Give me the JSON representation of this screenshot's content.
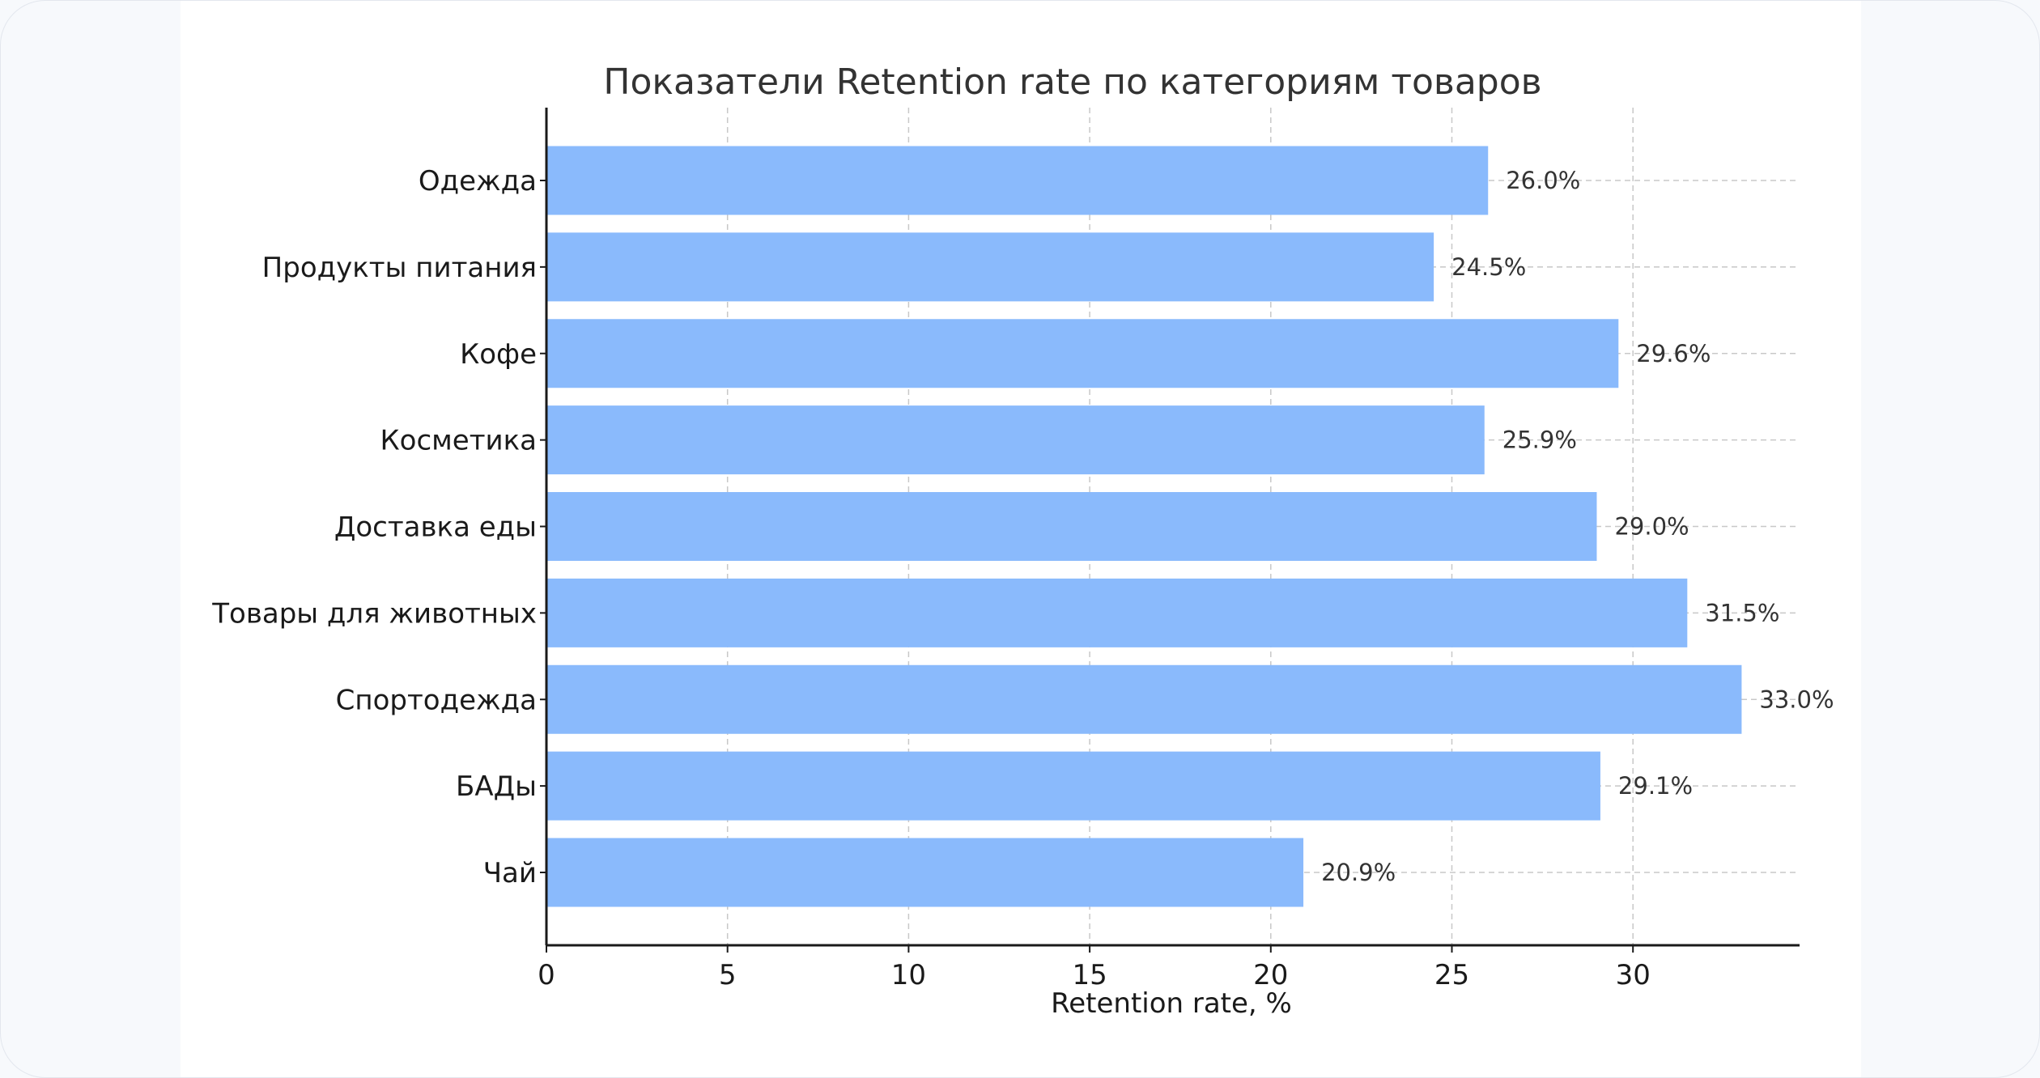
{
  "chart_data": {
    "type": "bar",
    "orientation": "horizontal",
    "title": "Показатели Retention rate по категориям товаров",
    "xlabel": "Retention rate, %",
    "ylabel": "",
    "categories": [
      "Одежда",
      "Продукты питания",
      "Кофе",
      "Косметика",
      "Доставка еды",
      "Товары для животных",
      "Спортодежда",
      "БАДы",
      "Чай"
    ],
    "values": [
      26.0,
      24.5,
      29.6,
      25.9,
      29.0,
      31.5,
      33.0,
      29.1,
      20.9
    ],
    "value_labels": [
      "26.0%",
      "24.5%",
      "29.6%",
      "25.9%",
      "29.0%",
      "31.5%",
      "33.0%",
      "29.1%",
      "20.9%"
    ],
    "xlim": [
      0,
      34.6
    ],
    "xticks": [
      0,
      5,
      10,
      15,
      20,
      25,
      30
    ],
    "xtick_labels": [
      "0",
      "5",
      "10",
      "15",
      "20",
      "25",
      "30"
    ],
    "grid": true,
    "bar_color": "#8abafc"
  }
}
